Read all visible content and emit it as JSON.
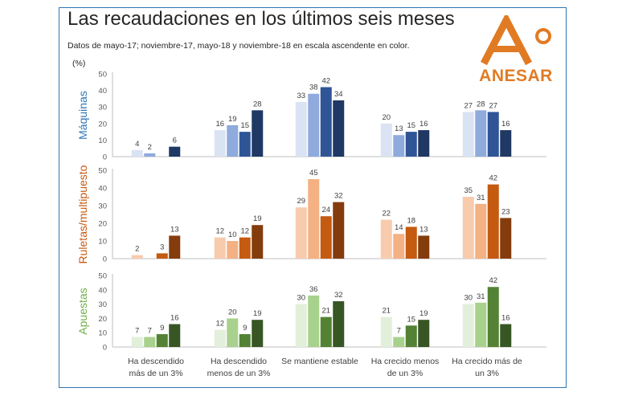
{
  "header": {
    "title": "Las recaudaciones en los últimos seis meses",
    "subtitle": "Datos de mayo-17; noviembre-17, mayo-18 y noviembre-18 en escala ascendente en color.",
    "unit": "(%)"
  },
  "logo": {
    "text": "ANESAR",
    "color": "#e07b24"
  },
  "chart_data": {
    "type": "bar",
    "categories": [
      [
        "Ha descendido",
        "más de un 3%"
      ],
      [
        "Ha descendido",
        "menos de un 3%"
      ],
      [
        "Se mantiene estable"
      ],
      [
        "Ha crecido menos",
        "de un 3%"
      ],
      [
        "Ha crecido más de",
        "un 3%"
      ]
    ],
    "periods": [
      "mayo-17",
      "noviembre-17",
      "mayo-18",
      "noviembre-18"
    ],
    "ylim": [
      0,
      50
    ],
    "yticks": [
      0,
      10,
      20,
      30,
      40,
      50
    ],
    "panels": [
      {
        "name": "Máquinas",
        "label_color": "#2e75b6",
        "colors": [
          "#dae3f3",
          "#8faadc",
          "#2f5597",
          "#1f3864"
        ],
        "values": [
          [
            4,
            2,
            null,
            6
          ],
          [
            16,
            19,
            15,
            28
          ],
          [
            33,
            38,
            42,
            34
          ],
          [
            20,
            13,
            15,
            16
          ],
          [
            27,
            28,
            27,
            16
          ]
        ]
      },
      {
        "name": "Ruletas/multipuesto",
        "label_color": "#c55a11",
        "colors": [
          "#f8cbad",
          "#f4b183",
          "#c55a11",
          "#843c0c"
        ],
        "values": [
          [
            2,
            null,
            3,
            13
          ],
          [
            12,
            10,
            12,
            19
          ],
          [
            29,
            45,
            24,
            32
          ],
          [
            22,
            14,
            18,
            13
          ],
          [
            35,
            31,
            42,
            23
          ]
        ]
      },
      {
        "name": "Apuestas",
        "label_color": "#70ad47",
        "colors": [
          "#e2efda",
          "#a9d18e",
          "#548235",
          "#375623"
        ],
        "values": [
          [
            7,
            7,
            9,
            16
          ],
          [
            12,
            20,
            9,
            19
          ],
          [
            30,
            36,
            21,
            32
          ],
          [
            21,
            7,
            15,
            19
          ],
          [
            30,
            31,
            42,
            16
          ]
        ]
      }
    ]
  }
}
